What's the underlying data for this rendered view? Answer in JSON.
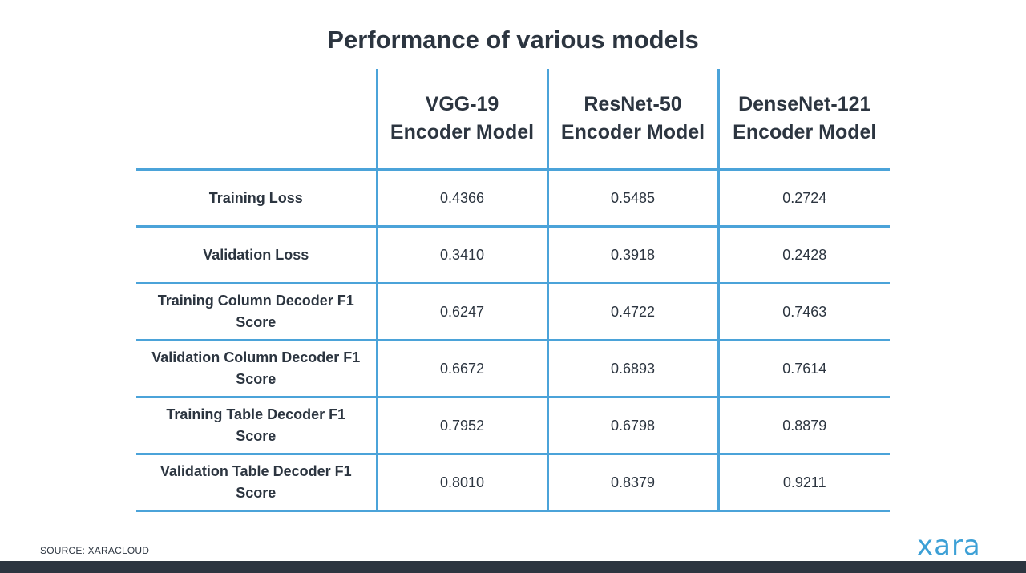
{
  "title": "Performance of various models",
  "source_text": "SOURCE: XARACLOUD",
  "logo_text": "xara",
  "colors": {
    "accent_lines": "#4ba3d9",
    "text": "#2c3540",
    "logo": "#3da0d6",
    "footer_bar": "#2c3540"
  },
  "chart_data": {
    "type": "table",
    "title": "Performance of various models",
    "columns": [
      {
        "line1": "VGG-19",
        "line2": "Encoder Model"
      },
      {
        "line1": "ResNet-50",
        "line2": "Encoder Model"
      },
      {
        "line1": "DenseNet-121",
        "line2": "Encoder Model"
      }
    ],
    "rows": [
      {
        "label": "Training Loss",
        "values": [
          "0.4366",
          "0.5485",
          "0.2724"
        ]
      },
      {
        "label": "Validation Loss",
        "values": [
          "0.3410",
          "0.3918",
          "0.2428"
        ]
      },
      {
        "label": "Training Column Decoder F1 Score",
        "values": [
          "0.6247",
          "0.4722",
          "0.7463"
        ]
      },
      {
        "label": "Validation Column Decoder F1 Score",
        "values": [
          "0.6672",
          "0.6893",
          "0.7614"
        ]
      },
      {
        "label": "Training Table Decoder F1 Score",
        "values": [
          "0.7952",
          "0.6798",
          "0.8879"
        ]
      },
      {
        "label": "Validation Table Decoder F1 Score",
        "values": [
          "0.8010",
          "0.8379",
          "0.9211"
        ]
      }
    ]
  }
}
